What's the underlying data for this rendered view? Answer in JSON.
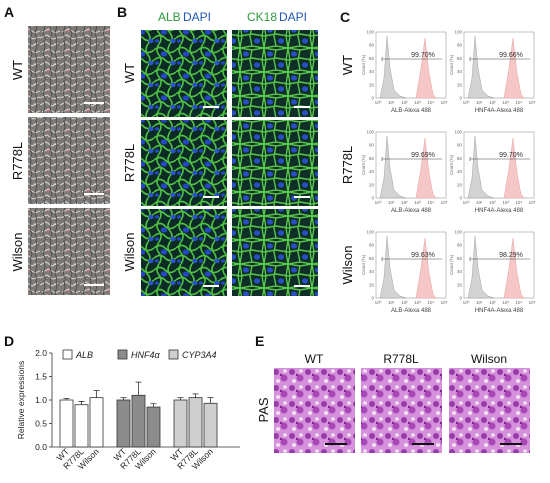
{
  "panels": {
    "A": {
      "label": "A",
      "rows": [
        "WT",
        "R778L",
        "Wilson"
      ]
    },
    "B": {
      "label": "B",
      "col1_stain": "ALB",
      "col1_dapi": "DAPI",
      "col2_stain": "CK18",
      "col2_dapi": "DAPI",
      "rows": [
        "WT",
        "R778L",
        "Wilson"
      ]
    },
    "C": {
      "label": "C",
      "rows": [
        "WT",
        "R778L",
        "Wilson"
      ],
      "y_label": "Count (%)",
      "y_ticks": [
        "0",
        "20",
        "40",
        "60",
        "80",
        "100"
      ],
      "x_ticks": [
        "10⁰",
        "10¹",
        "10²",
        "10³",
        "10⁴",
        "10⁵"
      ],
      "col1_xlabel": "ALB-Alexa 488",
      "col2_xlabel": "HNF4A-Alexa 488",
      "percentages": [
        [
          "99.70%",
          "99.66%"
        ],
        [
          "99.69%",
          "99.70%"
        ],
        [
          "99.63%",
          "98.29%"
        ]
      ]
    },
    "D": {
      "label": "D",
      "ylabel": "Relative expressions",
      "legend": [
        "ALB",
        "HNF4α",
        "CYP3A4"
      ]
    },
    "E": {
      "label": "E",
      "side_label": "PAS",
      "cols": [
        "WT",
        "R778L",
        "Wilson"
      ]
    }
  },
  "chart_data": {
    "type": "bar",
    "ylabel": "Relative expressions",
    "ylim": [
      0,
      2.0
    ],
    "yticks": [
      0,
      0.5,
      1.0,
      1.5,
      2.0
    ],
    "ytick_labels": [
      "0.0",
      "0.5",
      "1.0",
      "1.5",
      "2.0"
    ],
    "categories": [
      "WT",
      "R778L",
      "Wilson"
    ],
    "series": [
      {
        "name": "ALB",
        "values": [
          1.0,
          0.9,
          1.05
        ],
        "errors": [
          0.03,
          0.07,
          0.15
        ],
        "color": "#ffffff"
      },
      {
        "name": "HNF4α",
        "values": [
          1.0,
          1.1,
          0.85
        ],
        "errors": [
          0.05,
          0.28,
          0.07
        ],
        "color": "#8c8c8c"
      },
      {
        "name": "CYP3A4",
        "values": [
          1.0,
          1.05,
          0.93
        ],
        "errors": [
          0.05,
          0.08,
          0.12
        ],
        "color": "#cfcfcf"
      }
    ],
    "legend_position": "top"
  },
  "colors": {
    "flow_gray": "#cfcfcf",
    "flow_pink": "#f5c7c7",
    "if_green": "#3fae3d",
    "if_blue": "#1f3fb3",
    "pas_magenta": "#b64ab8"
  }
}
